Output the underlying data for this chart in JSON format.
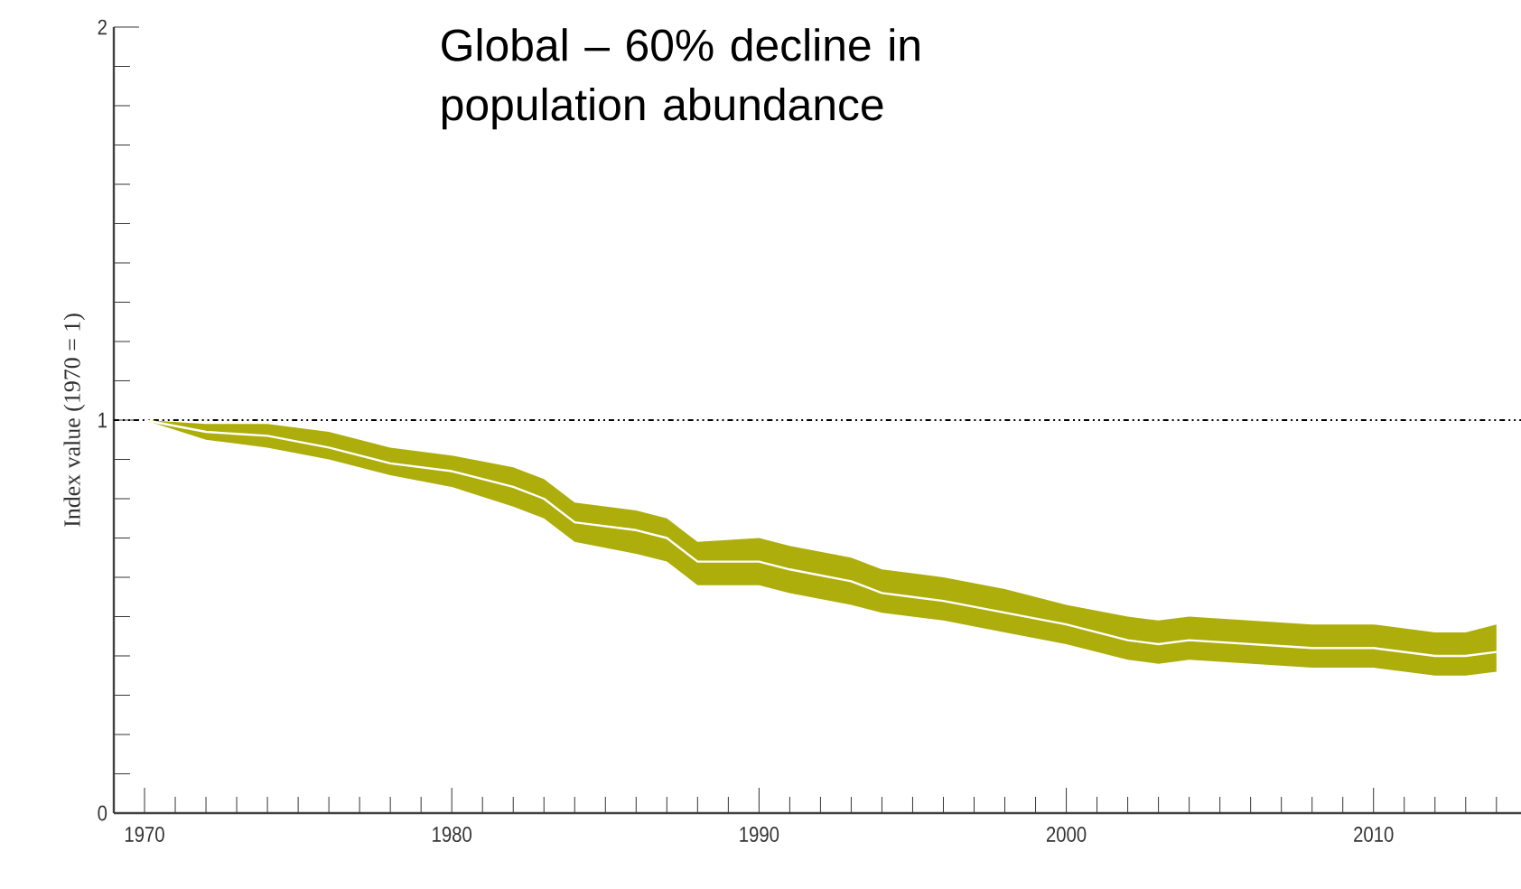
{
  "chart_data": {
    "type": "line",
    "title": "Global – 60% decline in population abundance",
    "ylabel": "Index value (1970 = 1)",
    "x": [
      1970,
      1972,
      1974,
      1976,
      1978,
      1980,
      1982,
      1983,
      1984,
      1986,
      1987,
      1988,
      1990,
      1991,
      1993,
      1994,
      1996,
      1998,
      2000,
      2002,
      2003,
      2004,
      2006,
      2008,
      2010,
      2012,
      2013,
      2014
    ],
    "series": [
      {
        "color": "#ffffff",
        "values": [
          1.0,
          0.97,
          0.96,
          0.93,
          0.89,
          0.87,
          0.83,
          0.8,
          0.74,
          0.72,
          0.7,
          0.64,
          0.64,
          0.62,
          0.59,
          0.56,
          0.54,
          0.51,
          0.48,
          0.44,
          0.43,
          0.44,
          0.43,
          0.42,
          0.42,
          0.4,
          0.4,
          0.41
        ],
        "lower": [
          1.0,
          0.95,
          0.93,
          0.9,
          0.86,
          0.83,
          0.78,
          0.75,
          0.69,
          0.66,
          0.64,
          0.58,
          0.58,
          0.56,
          0.53,
          0.51,
          0.49,
          0.46,
          0.43,
          0.39,
          0.38,
          0.39,
          0.38,
          0.37,
          0.37,
          0.35,
          0.35,
          0.36
        ],
        "upper": [
          1.0,
          0.99,
          0.99,
          0.97,
          0.93,
          0.91,
          0.88,
          0.85,
          0.79,
          0.77,
          0.75,
          0.69,
          0.7,
          0.68,
          0.65,
          0.62,
          0.6,
          0.57,
          0.53,
          0.5,
          0.49,
          0.5,
          0.49,
          0.48,
          0.48,
          0.46,
          0.46,
          0.48
        ]
      }
    ],
    "xlim": [
      1969,
      2014.8
    ],
    "ylim": [
      0,
      2
    ],
    "xticks": [
      1970,
      {
        "value": 1971,
        "label": null
      },
      {
        "value": 1972,
        "label": null
      },
      {
        "value": 1973,
        "label": null
      },
      {
        "value": 1974,
        "label": null
      },
      {
        "value": 1975,
        "label": null
      },
      {
        "value": 1976,
        "label": null
      },
      {
        "value": 1977,
        "label": null
      },
      {
        "value": 1978,
        "label": null
      },
      {
        "value": 1979,
        "label": null
      },
      1980,
      {
        "value": 1981,
        "label": null
      },
      {
        "value": 1982,
        "label": null
      },
      {
        "value": 1983,
        "label": null
      },
      {
        "value": 1984,
        "label": null
      },
      {
        "value": 1985,
        "label": null
      },
      {
        "value": 1986,
        "label": null
      },
      {
        "value": 1987,
        "label": null
      },
      {
        "value": 1988,
        "label": null
      },
      {
        "value": 1989,
        "label": null
      },
      1990,
      {
        "value": 1991,
        "label": null
      },
      {
        "value": 1992,
        "label": null
      },
      {
        "value": 1993,
        "label": null
      },
      {
        "value": 1994,
        "label": null
      },
      {
        "value": 1995,
        "label": null
      },
      {
        "value": 1996,
        "label": null
      },
      {
        "value": 1997,
        "label": null
      },
      {
        "value": 1998,
        "label": null
      },
      {
        "value": 1999,
        "label": null
      },
      2000,
      {
        "value": 2001,
        "label": null
      },
      {
        "value": 2002,
        "label": null
      },
      {
        "value": 2003,
        "label": null
      },
      {
        "value": 2004,
        "label": null
      },
      {
        "value": 2005,
        "label": null
      },
      {
        "value": 2006,
        "label": null
      },
      {
        "value": 2007,
        "label": null
      },
      {
        "value": 2008,
        "label": null
      },
      {
        "value": 2009,
        "label": null
      },
      2010,
      {
        "value": 2011,
        "label": null
      },
      {
        "value": 2012,
        "label": null
      },
      {
        "value": 2013,
        "label": null
      },
      {
        "value": 2014,
        "label": null
      }
    ],
    "yticks": [
      0,
      {
        "value": 0.1,
        "label": null
      },
      {
        "value": 0.2,
        "label": null
      },
      {
        "value": 0.3,
        "label": null
      },
      {
        "value": 0.4,
        "label": null
      },
      {
        "value": 0.5,
        "label": null
      },
      {
        "value": 0.6,
        "label": null
      },
      {
        "value": 0.7,
        "label": null
      },
      {
        "value": 0.8,
        "label": null
      },
      {
        "value": 0.9,
        "label": null
      },
      1,
      {
        "value": 1.1,
        "label": null
      },
      {
        "value": 1.2,
        "label": null
      },
      {
        "value": 1.3,
        "label": null
      },
      {
        "value": 1.4,
        "label": null
      },
      {
        "value": 1.5,
        "label": null
      },
      {
        "value": 1.6,
        "label": null
      },
      {
        "value": 1.7,
        "label": null
      },
      {
        "value": 1.8,
        "label": null
      },
      {
        "value": 1.9,
        "label": null
      },
      2
    ],
    "ref_lines": [
      {
        "axis": "y",
        "value": 1,
        "color": "#000000",
        "line_style": "dashed"
      }
    ]
  }
}
